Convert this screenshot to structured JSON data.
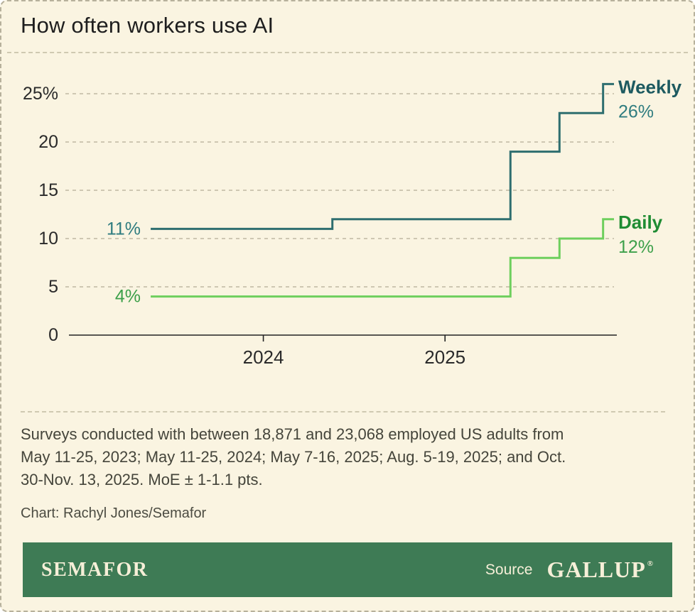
{
  "title": "How often workers use AI",
  "chart_data": {
    "type": "line",
    "step": "after",
    "title": "How often workers use AI",
    "x_years": [
      2023.38,
      2024.38,
      2025.36,
      2025.63,
      2025.87
    ],
    "x_point_labels": [
      "May 11-25, 2023",
      "May 11-25, 2024",
      "May 7-16, 2025",
      "Aug. 5-19, 2025",
      "Oct. 30-Nov. 13, 2025"
    ],
    "x_domain": [
      2022.93,
      2025.93
    ],
    "series": [
      {
        "name": "Weekly",
        "values": [
          11,
          12,
          19,
          23,
          26
        ],
        "color": "#2e6e6f",
        "name_color": "#1d5a60",
        "value_color": "#2f7c7f",
        "start_label": "11%",
        "end_label": "26%"
      },
      {
        "name": "Daily",
        "values": [
          4,
          4,
          8,
          10,
          12
        ],
        "color": "#6ecf5d",
        "name_color": "#1f8c33",
        "value_color": "#3da04a",
        "start_label": "4%",
        "end_label": "12%"
      }
    ],
    "ylim": [
      0,
      27
    ],
    "yticks": [
      0,
      5,
      10,
      15,
      20,
      25
    ],
    "ytick_labels": [
      "0",
      "5",
      "10",
      "15",
      "20",
      "25%"
    ],
    "xticks": [
      {
        "t": 2024,
        "label": "2024"
      },
      {
        "t": 2025,
        "label": "2025"
      }
    ],
    "grid": true,
    "legend_position": "right-edge-labels"
  },
  "notes": {
    "lines": [
      "Surveys conducted with between 18,871 and 23,068 employed US adults from",
      "May 11-25, 2023; May 11-25, 2024; May 7-16, 2025; Aug. 5-19, 2025; and Oct.",
      "30-Nov. 13, 2025. MoE ± 1-1.1 pts."
    ]
  },
  "credit": "Chart: Rachyl Jones/Semafor",
  "footer": {
    "brand": "SEMAFOR",
    "source_label": "Source",
    "source_name": "GALLUP",
    "reg_mark": "®"
  },
  "colors": {
    "background": "#faf4e1",
    "card_border": "#b7b19c",
    "grid": "#b3ac96",
    "axis": "#222222",
    "axis_text": "#2a2a2a",
    "title_text": "#1e1e1e",
    "notes_text": "#45453b",
    "footer_background": "#3e7b55",
    "footer_text": "#f6efd8"
  }
}
